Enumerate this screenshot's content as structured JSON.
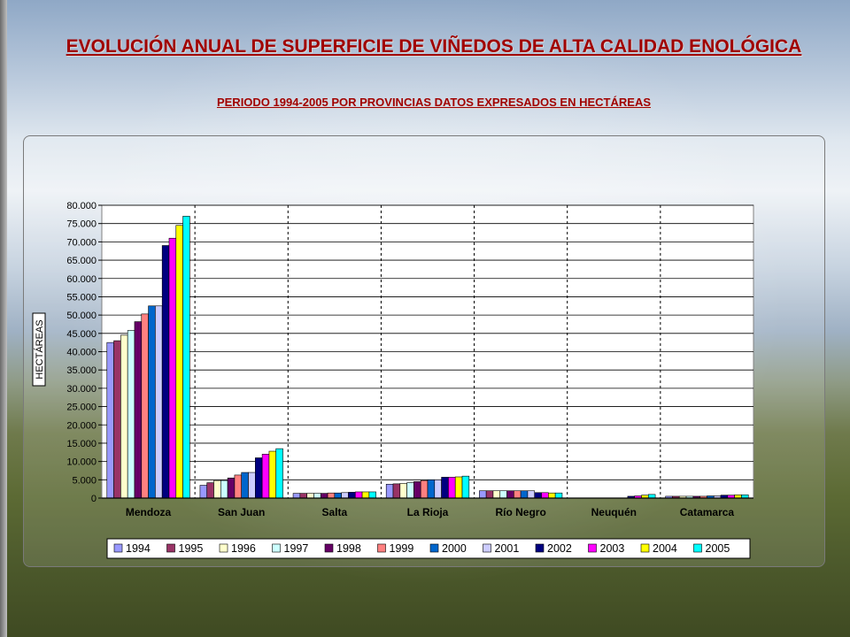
{
  "title": "EVOLUCIÓN ANUAL DE SUPERFICIE DE VIÑEDOS DE ALTA CALIDAD ENOLÓGICA",
  "subtitle": "PERIODO 1994-2005 POR PROVINCIAS DATOS EXPRESADOS EN HECTÁREAS",
  "colors": [
    "#9999ff",
    "#993366",
    "#ffffcc",
    "#ccffff",
    "#660066",
    "#ff8080",
    "#0066cc",
    "#ccccff",
    "#000080",
    "#ff00ff",
    "#ffff00",
    "#00ffff"
  ],
  "chart_data": {
    "type": "bar",
    "title": "",
    "xlabel": "",
    "ylabel": "HECTÁREAS",
    "ylim": [
      0,
      80000
    ],
    "y_ticks": [
      "0",
      "5.000",
      "10.000",
      "15.000",
      "20.000",
      "25.000",
      "30.000",
      "35.000",
      "40.000",
      "45.000",
      "50.000",
      "55.000",
      "60.000",
      "65.000",
      "70.000",
      "75.000",
      "80.000"
    ],
    "grid": "horizontal",
    "legend_position": "bottom",
    "categories": [
      "Mendoza",
      "San Juan",
      "Salta",
      "La Rioja",
      "Río Negro",
      "Neuquén",
      "Catamarca"
    ],
    "series": [
      {
        "name": "1994",
        "values": [
          42500,
          3500,
          1300,
          3800,
          2000,
          0,
          500
        ]
      },
      {
        "name": "1995",
        "values": [
          43000,
          4200,
          1300,
          3900,
          2000,
          0,
          500
        ]
      },
      {
        "name": "1996",
        "values": [
          44500,
          4800,
          1300,
          4000,
          2000,
          0,
          500
        ]
      },
      {
        "name": "1997",
        "values": [
          45800,
          4800,
          1300,
          4200,
          2000,
          0,
          500
        ]
      },
      {
        "name": "1998",
        "values": [
          48200,
          5500,
          1300,
          4500,
          2000,
          0,
          500
        ]
      },
      {
        "name": "1999",
        "values": [
          50300,
          6300,
          1400,
          4800,
          2000,
          0,
          500
        ]
      },
      {
        "name": "2000",
        "values": [
          52500,
          7000,
          1400,
          5000,
          2000,
          0,
          600
        ]
      },
      {
        "name": "2001",
        "values": [
          52500,
          7000,
          1500,
          5000,
          2000,
          0,
          600
        ]
      },
      {
        "name": "2002",
        "values": [
          69000,
          11000,
          1600,
          5700,
          1500,
          500,
          800
        ]
      },
      {
        "name": "2003",
        "values": [
          71000,
          12000,
          1700,
          5700,
          1500,
          600,
          800
        ]
      },
      {
        "name": "2004",
        "values": [
          74500,
          12800,
          1700,
          5800,
          1400,
          800,
          900
        ]
      },
      {
        "name": "2005",
        "values": [
          77000,
          13500,
          1700,
          6000,
          1400,
          1000,
          900
        ]
      }
    ]
  }
}
